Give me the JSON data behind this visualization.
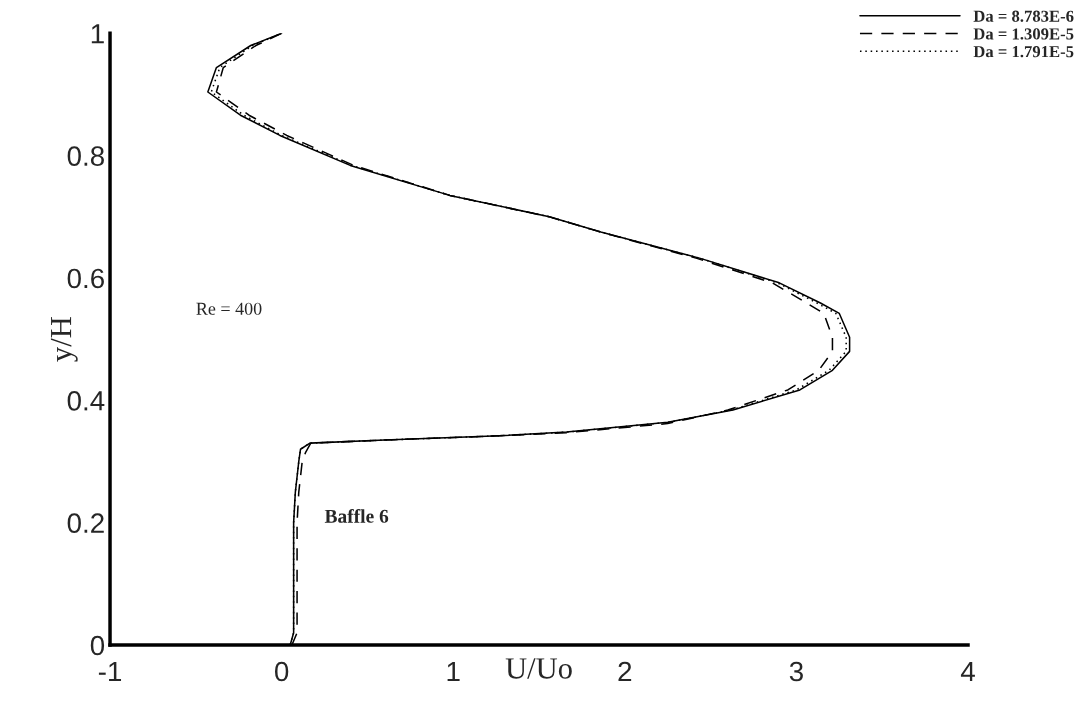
{
  "chart_data": {
    "type": "line",
    "xlabel": "U/Uo",
    "ylabel": "y/H",
    "xlim": [
      -1,
      4
    ],
    "ylim": [
      0,
      1
    ],
    "xticks": [
      -1,
      0,
      1,
      2,
      3,
      4
    ],
    "yticks": [
      0,
      0.2,
      0.4,
      0.6,
      0.8,
      1
    ],
    "grid": false,
    "legend": "top right",
    "marker": "none",
    "annotations": [
      "Re = 400",
      "Baffle 6"
    ],
    "series": [
      {
        "name": "Da = 8.783E-6",
        "color": "#000000",
        "line_style": "solid",
        "x": [
          0.05,
          0.07,
          0.07,
          0.08,
          0.1,
          0.11,
          0.165,
          0.6,
          1.27,
          1.66,
          2.25,
          2.63,
          3.02,
          3.21,
          3.31,
          3.31,
          3.25,
          3.14,
          2.9,
          2.44,
          1.86,
          1.56,
          0.98,
          0.4,
          -0.01,
          -0.24,
          -0.43,
          -0.38,
          -0.18,
          0.0
        ],
        "values": [
          0.0,
          0.02,
          0.2,
          0.25,
          0.3,
          0.32,
          0.33,
          0.335,
          0.342,
          0.348,
          0.364,
          0.384,
          0.417,
          0.449,
          0.48,
          0.503,
          0.542,
          0.559,
          0.592,
          0.632,
          0.675,
          0.7,
          0.735,
          0.784,
          0.833,
          0.866,
          0.904,
          0.944,
          0.98,
          1.0
        ]
      },
      {
        "name": "Da = 1.309E-5",
        "color": "#000000",
        "line_style": "dashed",
        "x": [
          0.06,
          0.09,
          0.09,
          0.1,
          0.12,
          0.14,
          0.17,
          0.6,
          1.27,
          1.66,
          2.25,
          2.6,
          2.95,
          3.13,
          3.21,
          3.21,
          3.16,
          3.06,
          2.86,
          2.42,
          1.86,
          1.56,
          0.98,
          0.42,
          0.03,
          -0.19,
          -0.38,
          -0.34,
          -0.15,
          0.0
        ],
        "values": [
          0.0,
          0.02,
          0.2,
          0.25,
          0.3,
          0.315,
          0.33,
          0.335,
          0.342,
          0.347,
          0.362,
          0.384,
          0.417,
          0.449,
          0.48,
          0.503,
          0.542,
          0.559,
          0.592,
          0.632,
          0.675,
          0.7,
          0.735,
          0.784,
          0.833,
          0.866,
          0.904,
          0.944,
          0.98,
          1.0
        ]
      },
      {
        "name": "Da = 1.791E-5",
        "color": "#000000",
        "line_style": "dotted",
        "x": [
          0.05,
          0.07,
          0.07,
          0.08,
          0.1,
          0.11,
          0.165,
          0.6,
          1.27,
          1.66,
          2.25,
          2.62,
          3.0,
          3.19,
          3.29,
          3.29,
          3.23,
          3.12,
          2.89,
          2.44,
          1.86,
          1.56,
          0.98,
          0.41,
          0.0,
          -0.22,
          -0.41,
          -0.36,
          -0.17,
          0.0
        ],
        "values": [
          0.0,
          0.02,
          0.2,
          0.25,
          0.3,
          0.32,
          0.33,
          0.335,
          0.342,
          0.348,
          0.364,
          0.384,
          0.417,
          0.449,
          0.48,
          0.503,
          0.542,
          0.559,
          0.592,
          0.632,
          0.675,
          0.7,
          0.735,
          0.784,
          0.833,
          0.866,
          0.904,
          0.944,
          0.98,
          1.0
        ]
      }
    ]
  }
}
